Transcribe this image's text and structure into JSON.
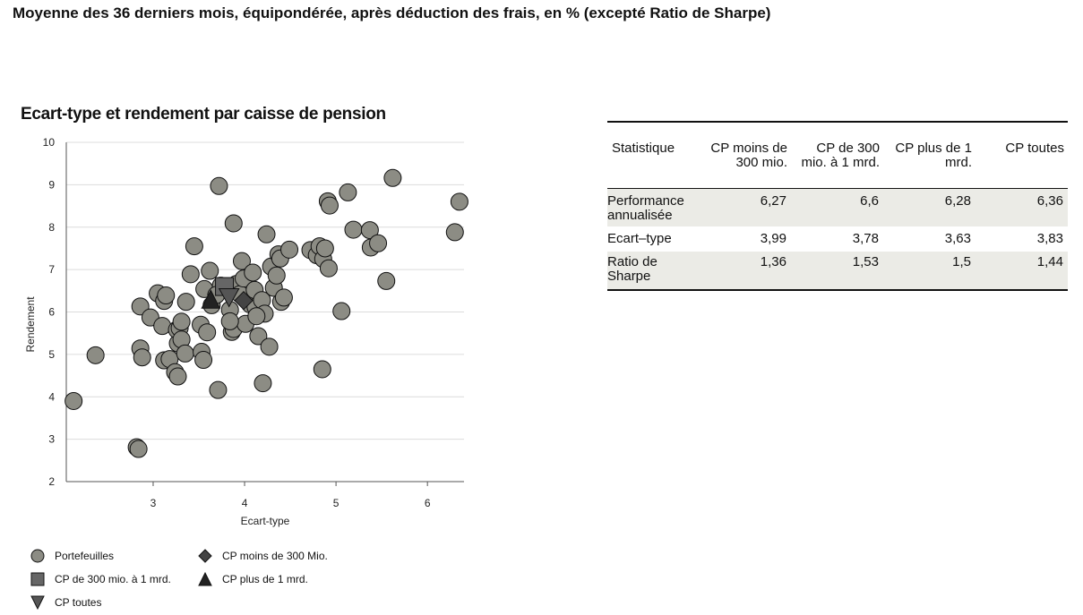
{
  "header": {
    "title": "Moyenne des 36 derniers mois, équipondérée, après déduction des frais, en % (excepté Ratio de Sharpe)"
  },
  "chart_data": {
    "type": "scatter",
    "title": "Ecart-type et rendement par caisse de pension",
    "xlabel": "Ecart-type",
    "ylabel": "Rendement",
    "xlim": [
      2.05,
      6.4
    ],
    "ylim": [
      2,
      10
    ],
    "xticks": [
      "3",
      "4",
      "5",
      "6"
    ],
    "yticks": [
      "2",
      "3",
      "4",
      "5",
      "6",
      "7",
      "8",
      "9",
      "10"
    ],
    "grid": "horizontal",
    "legend_position": "bottom-left",
    "colors": {
      "points": "#8c8c84",
      "markers": "#444444",
      "edge": "#111111"
    },
    "series": [
      {
        "name": "Portefeuilles",
        "marker": "circle",
        "points": [
          [
            2.13,
            3.9
          ],
          [
            2.82,
            2.81
          ],
          [
            2.84,
            2.77
          ],
          [
            2.37,
            4.98
          ],
          [
            2.86,
            5.14
          ],
          [
            2.88,
            4.93
          ],
          [
            2.86,
            6.13
          ],
          [
            2.97,
            5.87
          ],
          [
            3.05,
            6.44
          ],
          [
            3.12,
            6.26
          ],
          [
            3.14,
            6.39
          ],
          [
            3.1,
            5.67
          ],
          [
            3.12,
            4.86
          ],
          [
            3.18,
            4.89
          ],
          [
            3.24,
            4.58
          ],
          [
            3.27,
            4.48
          ],
          [
            3.27,
            5.26
          ],
          [
            3.26,
            5.58
          ],
          [
            3.29,
            5.62
          ],
          [
            3.31,
            5.77
          ],
          [
            3.31,
            5.35
          ],
          [
            3.35,
            5.02
          ],
          [
            3.36,
            6.24
          ],
          [
            3.41,
            6.89
          ],
          [
            3.45,
            7.55
          ],
          [
            3.52,
            5.7
          ],
          [
            3.53,
            5.06
          ],
          [
            3.55,
            4.87
          ],
          [
            3.56,
            6.54
          ],
          [
            3.59,
            5.52
          ],
          [
            3.62,
            6.97
          ],
          [
            3.64,
            6.16
          ],
          [
            3.71,
            4.16
          ],
          [
            3.72,
            8.97
          ],
          [
            3.74,
            6.62
          ],
          [
            3.84,
            6.05
          ],
          [
            3.86,
            5.53
          ],
          [
            3.88,
            8.09
          ],
          [
            3.88,
            5.6
          ],
          [
            3.91,
            6.66
          ],
          [
            3.95,
            6.42
          ],
          [
            3.97,
            7.2
          ],
          [
            3.99,
            6.79
          ],
          [
            4.01,
            5.72
          ],
          [
            4.06,
            6.18
          ],
          [
            4.09,
            6.93
          ],
          [
            4.11,
            6.52
          ],
          [
            4.12,
            6.12
          ],
          [
            4.15,
            5.43
          ],
          [
            4.19,
            6.28
          ],
          [
            4.2,
            4.32
          ],
          [
            4.22,
            5.96
          ],
          [
            4.24,
            7.83
          ],
          [
            4.27,
            5.18
          ],
          [
            4.29,
            7.07
          ],
          [
            4.32,
            6.57
          ],
          [
            4.35,
            6.86
          ],
          [
            4.37,
            7.36
          ],
          [
            4.39,
            7.26
          ],
          [
            4.4,
            6.24
          ],
          [
            4.43,
            6.34
          ],
          [
            4.49,
            7.47
          ],
          [
            4.72,
            7.46
          ],
          [
            4.79,
            7.34
          ],
          [
            4.82,
            7.55
          ],
          [
            4.85,
            4.65
          ],
          [
            4.86,
            7.25
          ],
          [
            4.88,
            7.5
          ],
          [
            4.91,
            8.61
          ],
          [
            4.92,
            7.03
          ],
          [
            4.93,
            8.51
          ],
          [
            5.06,
            6.02
          ],
          [
            5.13,
            8.82
          ],
          [
            5.19,
            7.94
          ],
          [
            5.37,
            7.93
          ],
          [
            5.38,
            7.52
          ],
          [
            5.46,
            7.62
          ],
          [
            5.55,
            6.73
          ],
          [
            5.62,
            9.16
          ],
          [
            6.3,
            7.88
          ],
          [
            6.35,
            8.6
          ],
          [
            4.13,
            5.9
          ],
          [
            3.84,
            5.78
          ],
          [
            3.69,
            6.4
          ]
        ]
      },
      {
        "name": "CP moins de 300 Mio.",
        "marker": "diamond",
        "points": [
          [
            3.99,
            6.27
          ]
        ]
      },
      {
        "name": "CP de 300 mio. à 1 mrd.",
        "marker": "square",
        "points": [
          [
            3.78,
            6.6
          ]
        ]
      },
      {
        "name": "CP plus de 1 mrd.",
        "marker": "triangle-up",
        "points": [
          [
            3.63,
            6.28
          ]
        ]
      },
      {
        "name": "CP toutes",
        "marker": "triangle-down",
        "points": [
          [
            3.83,
            6.36
          ]
        ]
      }
    ]
  },
  "legend": {
    "portefeuilles": "Portefeuilles",
    "cp_small": "CP moins de 300 Mio.",
    "cp_mid": "CP de 300 mio. à 1 mrd.",
    "cp_large": "CP plus de 1 mrd.",
    "cp_all": "CP toutes"
  },
  "table": {
    "headers": [
      "Statistique",
      "CP moins de 300 mio.",
      "CP de 300 mio. à 1 mrd.",
      "CP plus de 1 mrd.",
      "CP toutes"
    ],
    "rows": [
      [
        "Performance annualisée",
        "6,27",
        "6,6",
        "6,28",
        "6,36"
      ],
      [
        "Ecart–type",
        "3,99",
        "3,78",
        "3,63",
        "3,83"
      ],
      [
        "Ratio de Sharpe",
        "1,36",
        "1,53",
        "1,5",
        "1,44"
      ]
    ]
  }
}
